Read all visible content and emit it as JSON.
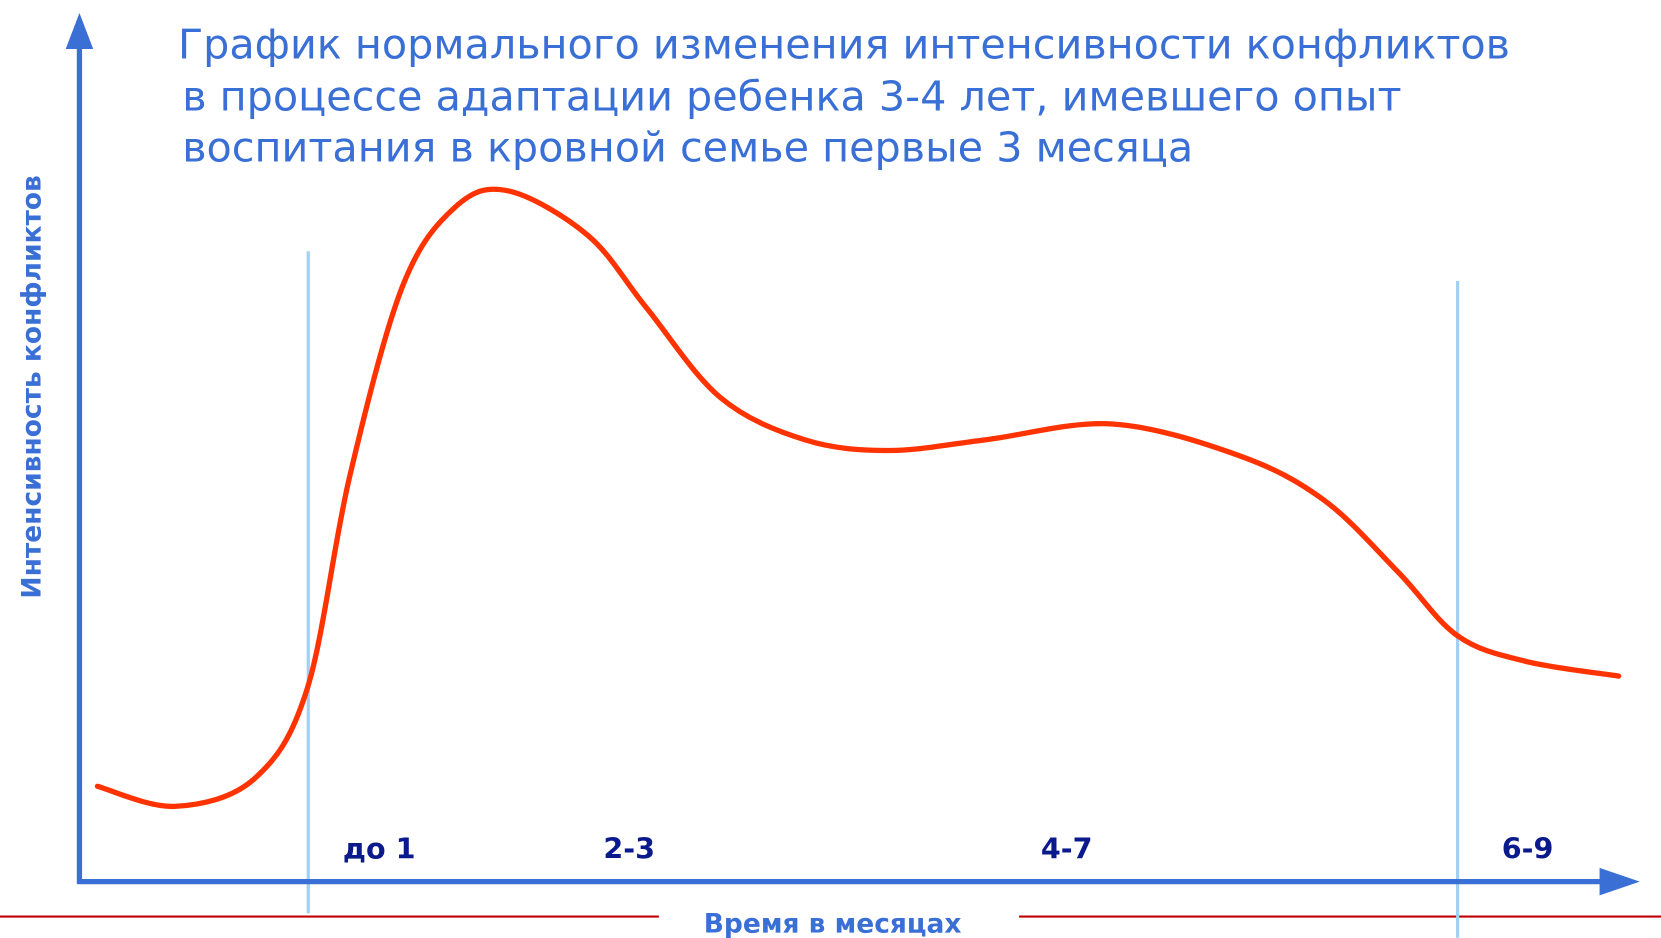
{
  "title": {
    "lines": [
      "График нормального изменения интенсивности конфликтов",
      "в процессе адаптации ребенка 3-4 лет, имевшего опыт",
      "воспитания в кровной семье первые 3 месяца"
    ]
  },
  "y_axis_label": "Интенсивность конфликтов",
  "x_axis_label": "Время в месяцах",
  "periods": [
    "до 1",
    "2-3",
    "4-7",
    "6-9"
  ]
}
